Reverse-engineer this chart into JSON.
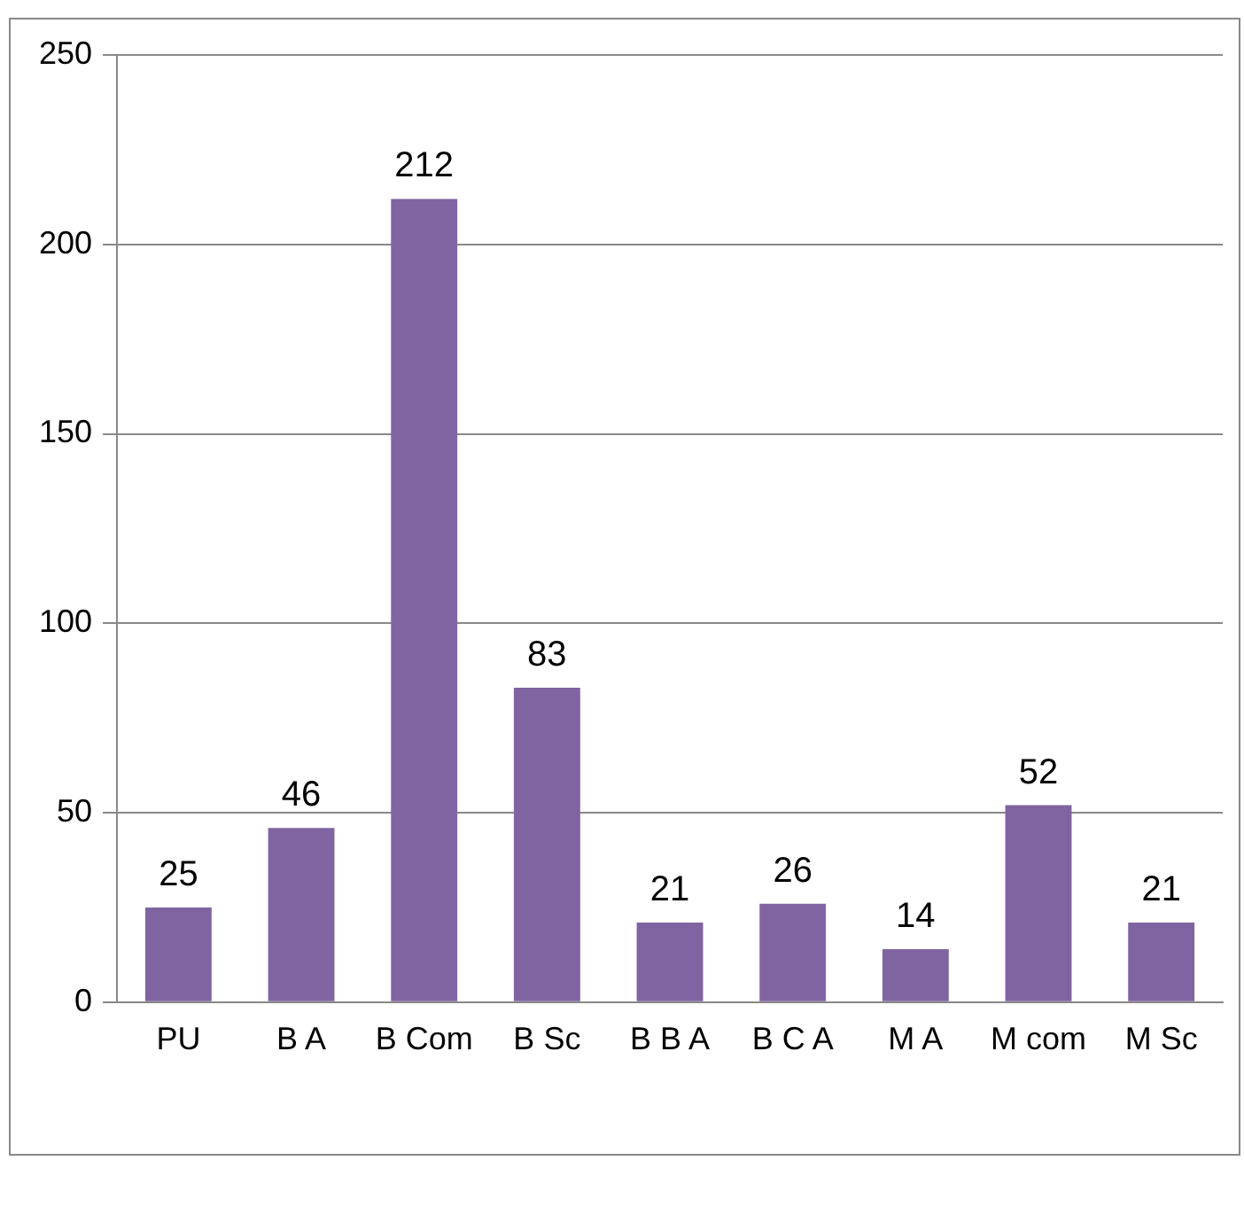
{
  "chart_data": {
    "type": "bar",
    "categories": [
      "PU",
      "B A",
      "B Com",
      "B Sc",
      "B B A",
      "B C A",
      "M A",
      "M com",
      "M Sc"
    ],
    "values": [
      25,
      46,
      212,
      83,
      21,
      26,
      14,
      52,
      21
    ],
    "color": "#8064a2",
    "ylim": [
      0,
      250
    ],
    "yticks": [
      0,
      50,
      100,
      150,
      200,
      250
    ],
    "grid": "y",
    "legend": false,
    "data_labels": true
  }
}
